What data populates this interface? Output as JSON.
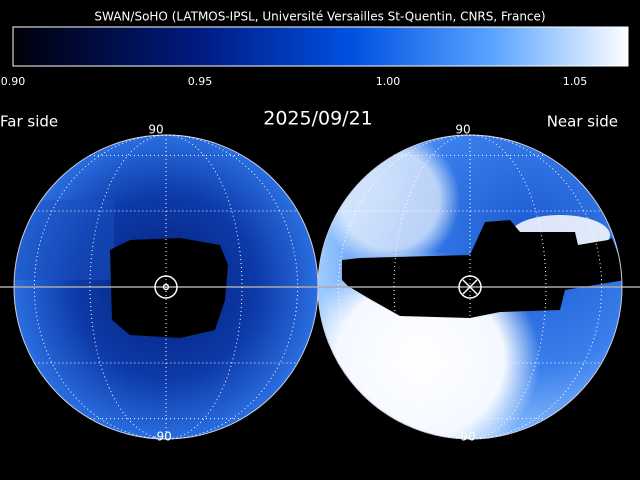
{
  "header": {
    "title": "SWAN/SoHO (LATMOS-IPSL, Université Versailles St-Quentin, CNRS, France)"
  },
  "colorbar": {
    "ticks": [
      "0.90",
      "0.95",
      "1.00",
      "1.05"
    ]
  },
  "date": "2025/09/21",
  "labels": {
    "far_side": "Far side",
    "near_side": "Near side"
  },
  "spheres": [
    {
      "top_label": "90",
      "bottom_label": "-90"
    },
    {
      "top_label": "90",
      "bottom_label": "-90"
    }
  ]
}
